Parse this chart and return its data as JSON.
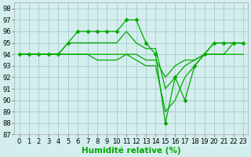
{
  "xlabel": "Humidité relative (%)",
  "xlim": [
    -0.5,
    23.5
  ],
  "ylim": [
    87,
    98.5
  ],
  "yticks": [
    87,
    88,
    89,
    90,
    91,
    92,
    93,
    94,
    95,
    96,
    97,
    98
  ],
  "xticks": [
    0,
    1,
    2,
    3,
    4,
    5,
    6,
    7,
    8,
    9,
    10,
    11,
    12,
    13,
    14,
    15,
    16,
    17,
    18,
    19,
    20,
    21,
    22,
    23
  ],
  "bg_color": "#d4eeee",
  "grid_color": "#aad0d0",
  "line_color": "#00aa00",
  "lines": [
    {
      "x": [
        0,
        1,
        2,
        3,
        4,
        5,
        6,
        7,
        8,
        9,
        10,
        11,
        12,
        13,
        14,
        15,
        16,
        17,
        18,
        19,
        20,
        21,
        22,
        23
      ],
      "y": [
        94,
        94,
        94,
        94,
        94,
        95,
        96,
        96,
        96,
        96,
        96,
        97,
        97,
        95,
        94,
        88,
        92,
        90,
        93,
        94,
        95,
        95,
        95,
        95
      ],
      "marker": "D",
      "markersize": 2.5
    },
    {
      "x": [
        0,
        1,
        2,
        3,
        4,
        5,
        6,
        7,
        8,
        9,
        10,
        11,
        12,
        13,
        14,
        15,
        16,
        17,
        18,
        19,
        20,
        21,
        22,
        23
      ],
      "y": [
        94,
        94,
        94,
        94,
        94,
        95,
        95,
        95,
        95,
        95,
        95,
        96,
        95,
        94.5,
        94.5,
        91,
        92,
        93,
        93.5,
        94,
        95,
        95,
        95,
        95
      ],
      "marker": null,
      "markersize": 0
    },
    {
      "x": [
        0,
        1,
        2,
        3,
        4,
        5,
        6,
        7,
        8,
        9,
        10,
        11,
        12,
        13,
        14,
        15,
        16,
        17,
        18,
        19,
        20,
        21,
        22,
        23
      ],
      "y": [
        94,
        94,
        94,
        94,
        94,
        94,
        94,
        94,
        94,
        94,
        94,
        94,
        94,
        93.5,
        93.5,
        92,
        93,
        93.5,
        93.5,
        94,
        94,
        94,
        95,
        95
      ],
      "marker": null,
      "markersize": 0
    },
    {
      "x": [
        0,
        1,
        2,
        3,
        4,
        5,
        6,
        7,
        8,
        9,
        10,
        11,
        12,
        13,
        14,
        15,
        16,
        17,
        18,
        19,
        20,
        21,
        22,
        23
      ],
      "y": [
        94,
        94,
        94,
        94,
        94,
        94,
        94,
        94,
        93.5,
        93.5,
        93.5,
        94,
        93.5,
        93,
        93,
        89,
        90,
        92,
        93,
        94,
        94,
        94,
        94,
        94
      ],
      "marker": null,
      "markersize": 0
    }
  ],
  "tick_fontsize": 6,
  "xlabel_fontsize": 7.5
}
